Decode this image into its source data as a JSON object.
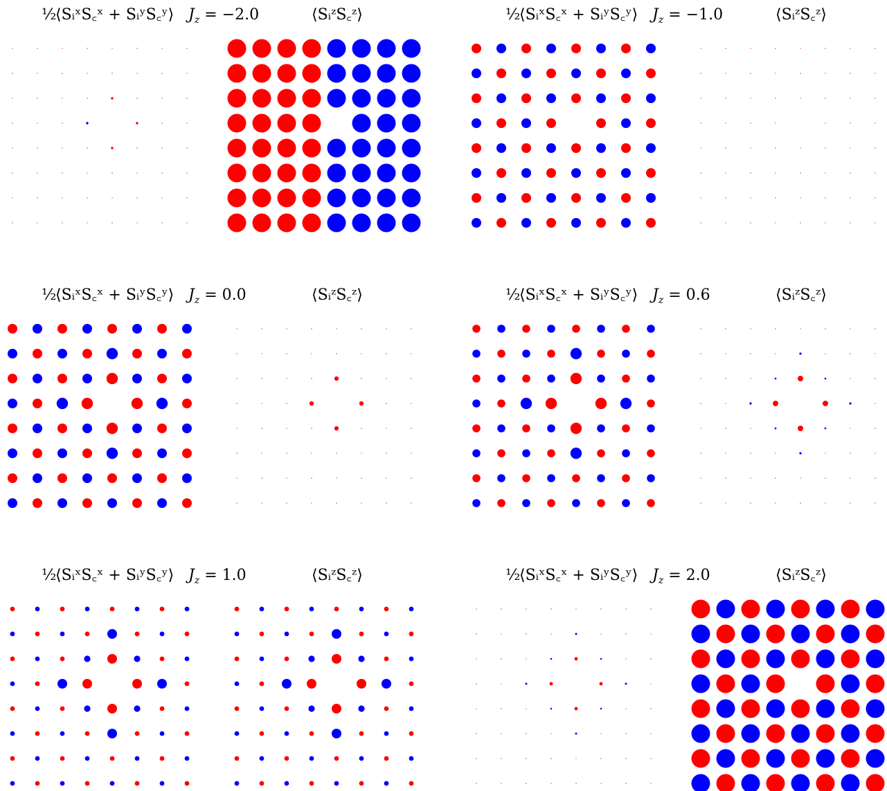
{
  "labels": {
    "left_title_prefix": "½",
    "left_title_expr": "⟨SᵢˣS꜀ˣ + SᵢʸS꜀ʸ⟩",
    "right_title": "⟨SᵢᶻS꜀ᶻ⟩",
    "jz_prefix": "J",
    "jz_sub": "z"
  },
  "colors": {
    "positive": "#ff0000",
    "negative": "#0000ff"
  },
  "chart_data": [
    {
      "type": "scatter",
      "jz_text": " = −2.0",
      "xy_pattern": "checker",
      "xy_base": 0.0,
      "xy_near": 0.06,
      "xy_far": 0.0,
      "xy_center_neg": true,
      "zz_pattern": "halves",
      "zz_base": 1.0,
      "zz_near": 1.0,
      "zz_far": 1.0
    },
    {
      "type": "scatter",
      "jz_text": " = −1.0",
      "xy_pattern": "checker",
      "xy_base": 0.5,
      "xy_near": 0.5,
      "xy_far": 0.5,
      "xy_center_neg": false,
      "zz_pattern": "checker",
      "zz_base": 0.0,
      "zz_near": 0.0,
      "zz_far": 0.0
    },
    {
      "type": "scatter",
      "jz_text": " = 0.0",
      "xy_pattern": "checker",
      "xy_base": 0.5,
      "xy_near": 0.6,
      "xy_far": 0.6,
      "xy_center_neg": false,
      "zz_pattern": "checker",
      "zz_base": 0.0,
      "zz_near": 0.18,
      "zz_far": 0.0
    },
    {
      "type": "scatter",
      "jz_text": " = 0.6",
      "xy_pattern": "checker",
      "xy_base": 0.4,
      "xy_near": 0.6,
      "xy_far": 0.6,
      "xy_center_neg": false,
      "zz_pattern": "checker",
      "zz_base": 0.0,
      "zz_near": 0.25,
      "zz_far": 0.05
    },
    {
      "type": "scatter",
      "jz_text": " = 1.0",
      "xy_pattern": "checker",
      "xy_base": 0.2,
      "xy_near": 0.5,
      "xy_far": 0.5,
      "xy_center_neg": false,
      "zz_pattern": "checker",
      "zz_base": 0.2,
      "zz_near": 0.5,
      "zz_far": 0.5
    },
    {
      "type": "scatter",
      "jz_text": " = 2.0",
      "xy_pattern": "checker",
      "xy_base": 0.0,
      "xy_near": 0.12,
      "xy_far": 0.04,
      "xy_center_neg": false,
      "zz_pattern": "checker",
      "zz_base": 1.0,
      "zz_near": 1.0,
      "zz_far": 1.0
    }
  ]
}
